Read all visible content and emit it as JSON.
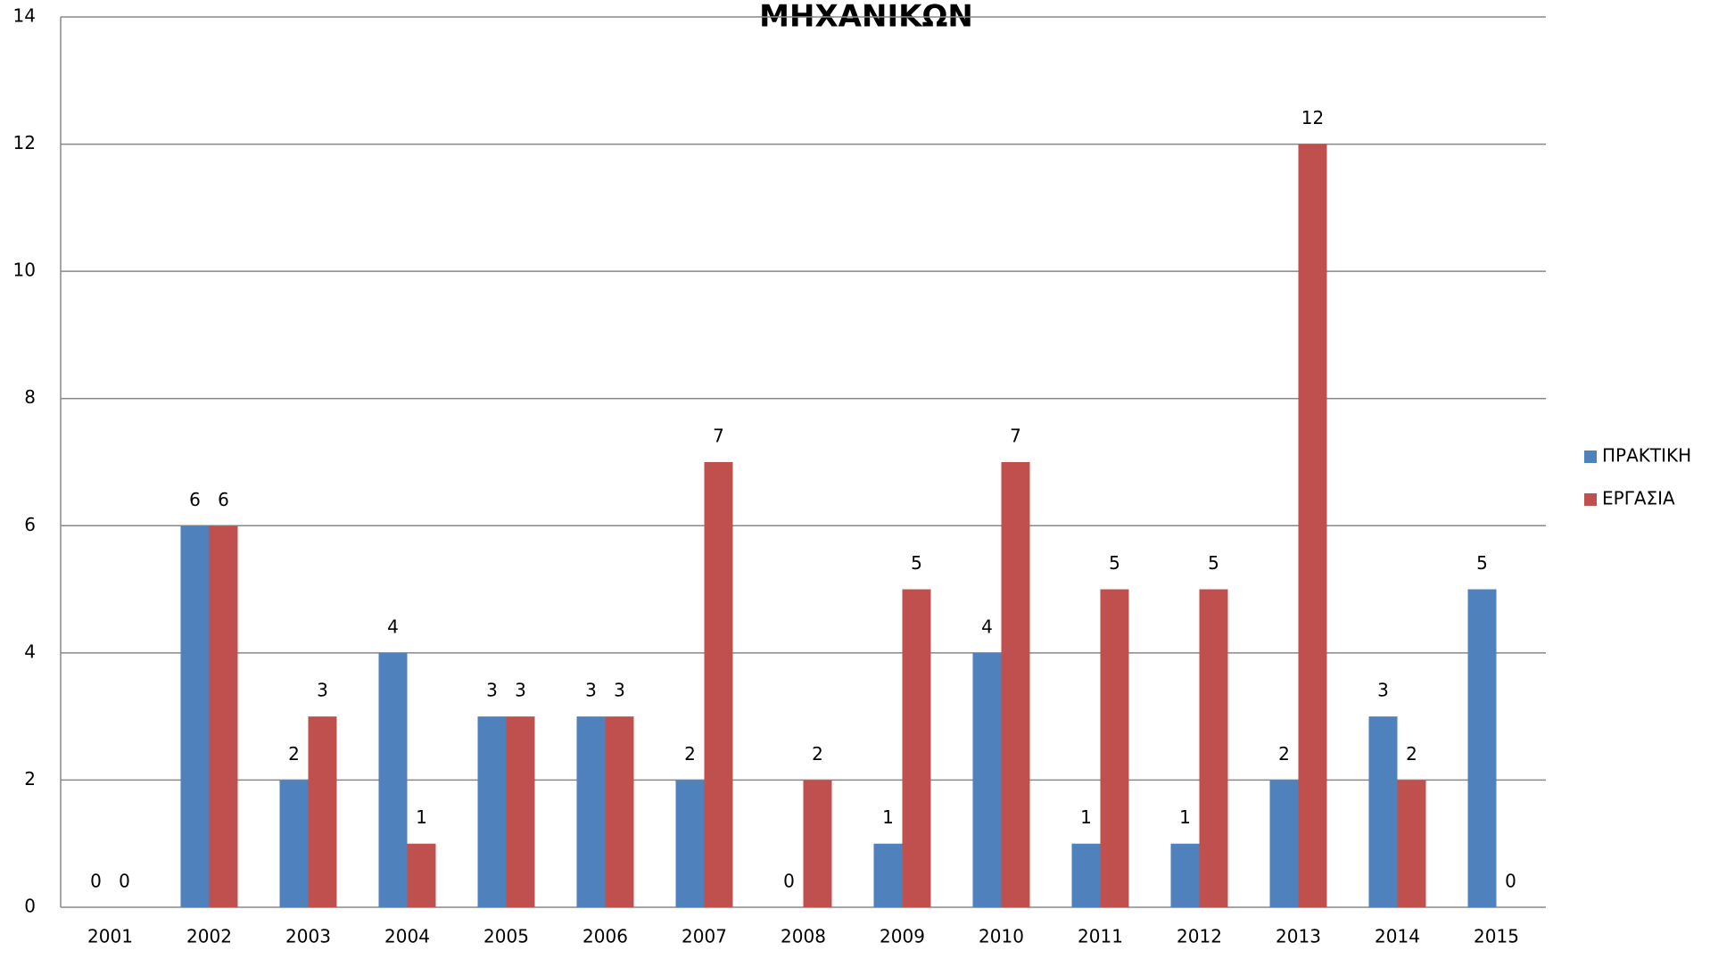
{
  "chart_data": {
    "type": "bar",
    "title": "ΜΗΧΑΝΙΚΩΝ",
    "categories": [
      "2001",
      "2002",
      "2003",
      "2004",
      "2005",
      "2006",
      "2007",
      "2008",
      "2009",
      "2010",
      "2011",
      "2012",
      "2013",
      "2014",
      "2015"
    ],
    "series": [
      {
        "name": "ΠΡΑΚΤΙΚΗ",
        "color": "#4f81bd",
        "values": [
          0,
          6,
          2,
          4,
          3,
          3,
          2,
          0,
          1,
          4,
          1,
          1,
          2,
          3,
          5
        ]
      },
      {
        "name": "ΕΡΓΑΣΙΑ",
        "color": "#c0504d",
        "values": [
          0,
          6,
          3,
          1,
          3,
          3,
          7,
          2,
          5,
          7,
          5,
          5,
          12,
          2,
          0
        ]
      }
    ],
    "ylim": [
      0,
      14
    ],
    "yticks": [
      0,
      2,
      4,
      6,
      8,
      10,
      12,
      14
    ],
    "grid": true,
    "legend": "right"
  }
}
